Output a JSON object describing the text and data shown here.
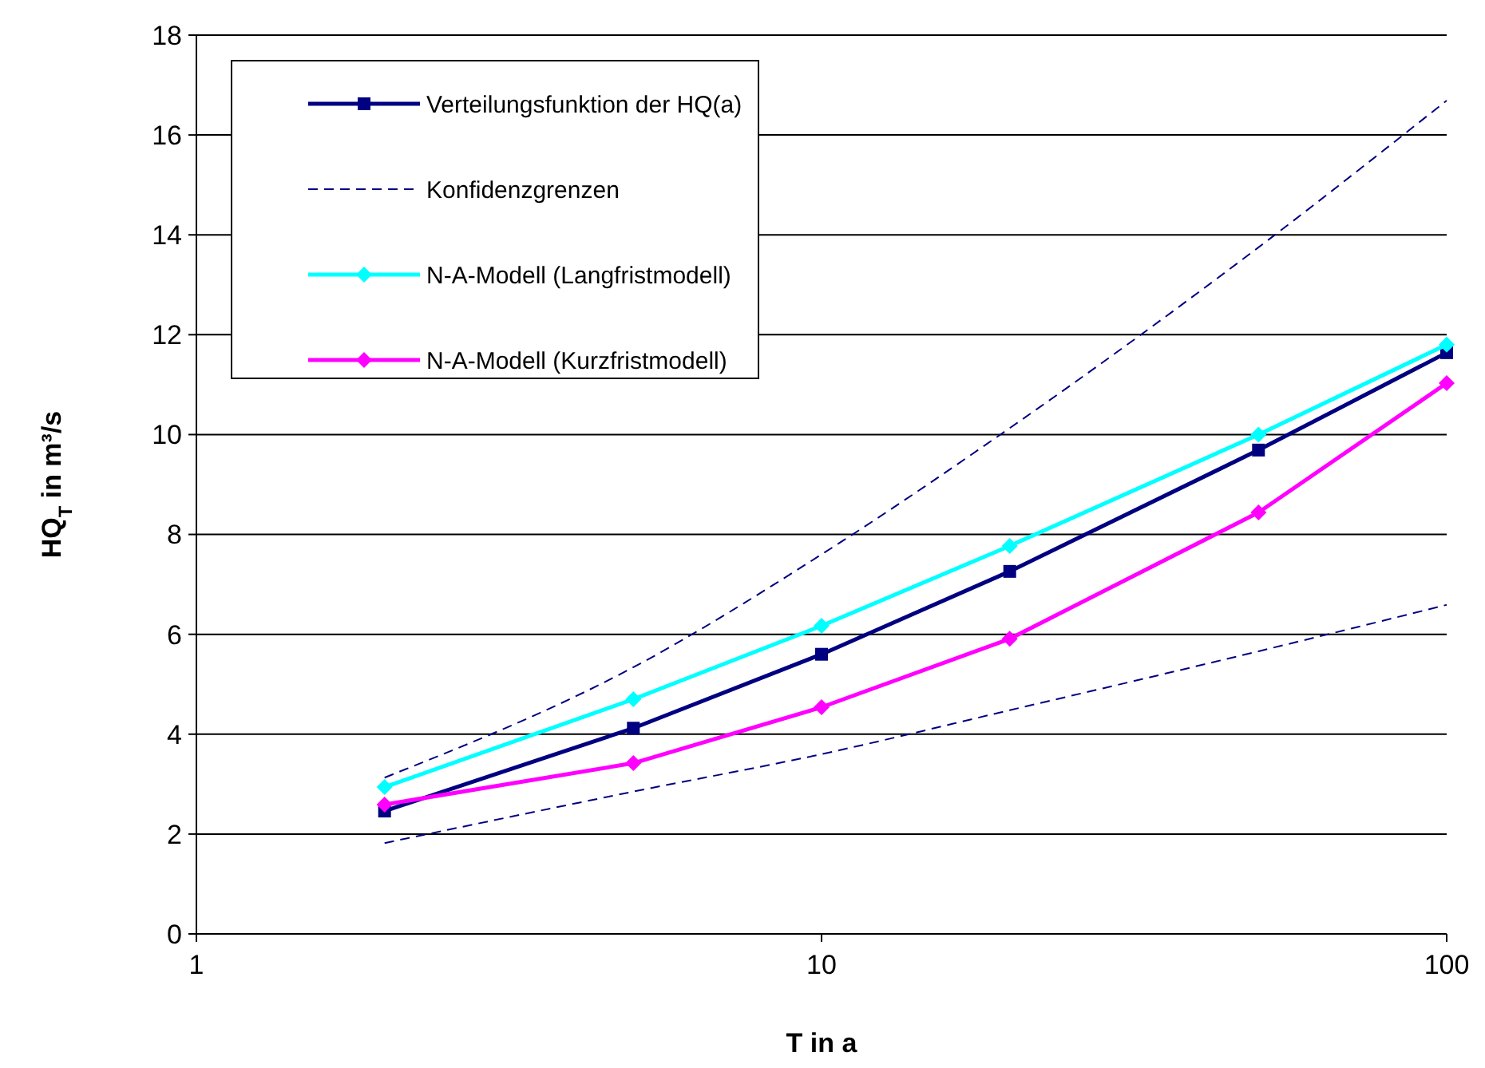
{
  "chart_data": {
    "type": "line",
    "xlabel": "T in a",
    "ylabel": "HQ$_{T}$ in m³/s",
    "log": "x",
    "xlim": [
      1,
      100
    ],
    "xticks": [
      1,
      10,
      100
    ],
    "ylim": [
      0,
      18
    ],
    "yticks": [
      0,
      2,
      4,
      6,
      8,
      10,
      12,
      14,
      16,
      18
    ],
    "grid": "y",
    "legend": "top left",
    "x": [
      2,
      5,
      10,
      20,
      50,
      100
    ],
    "series": [
      {
        "name": "Verteilungsfunktion der HQ(a)",
        "color": "#000080",
        "marker": "square",
        "line_style": "solid",
        "values": [
          2.46,
          4.12,
          5.6,
          7.26,
          9.69,
          11.64
        ]
      },
      {
        "name": "Konfidenzgrenzen",
        "color": "#000080",
        "marker": "none",
        "line_style": "dashed",
        "values": [
          3.13,
          5.34,
          7.6,
          10.13,
          13.75,
          16.69
        ]
      },
      {
        "color": "#000080",
        "marker": "none",
        "line_style": "dashed",
        "values": [
          1.82,
          2.85,
          3.6,
          4.48,
          5.66,
          6.59
        ]
      },
      {
        "name": "N-A-Modell (Langfristmodell)",
        "color": "#00ffff",
        "marker": "diamond",
        "line_style": "solid",
        "values": [
          2.94,
          4.7,
          6.17,
          7.77,
          10.0,
          11.8
        ]
      },
      {
        "name": "N-A-Modell (Kurzfristmodell)",
        "color": "#ff00ff",
        "marker": "diamond",
        "line_style": "solid",
        "values": [
          2.59,
          3.42,
          4.54,
          5.91,
          8.44,
          11.03
        ]
      }
    ]
  }
}
